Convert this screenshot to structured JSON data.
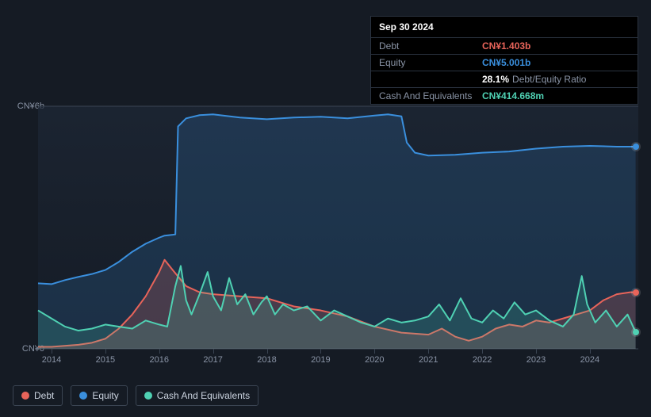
{
  "tooltip": {
    "date": "Sep 30 2024",
    "rows": [
      {
        "label": "Debt",
        "value": "CN¥1.403b",
        "color": "#e8645a"
      },
      {
        "label": "Equity",
        "value": "CN¥5.001b",
        "color": "#3a8fdd"
      },
      {
        "label": "",
        "value": "28.1%",
        "extra": "Debt/Equity Ratio",
        "color": "#ffffff"
      },
      {
        "label": "Cash And Equivalents",
        "value": "CN¥414.668m",
        "color": "#4fd1b3"
      }
    ]
  },
  "chart": {
    "type": "area-line",
    "background_color": "#151b24",
    "plot_bg_top": "rgba(30,40,55,0.7)",
    "ylim": [
      0,
      6
    ],
    "y_ticks": [
      {
        "v": 6,
        "label": "CN¥6b"
      },
      {
        "v": 0,
        "label": "CN¥0"
      }
    ],
    "x_start": 2013.75,
    "x_end": 2024.9,
    "x_ticks": [
      2014,
      2015,
      2016,
      2017,
      2018,
      2019,
      2020,
      2021,
      2022,
      2023,
      2024
    ],
    "grid_color": "#3a4452",
    "series": [
      {
        "name": "Equity",
        "color": "#3a8fdd",
        "fill_opacity": 0.18,
        "line_width": 2,
        "points": [
          [
            2013.75,
            1.62
          ],
          [
            2014.0,
            1.6
          ],
          [
            2014.25,
            1.7
          ],
          [
            2014.5,
            1.78
          ],
          [
            2014.75,
            1.85
          ],
          [
            2015.0,
            1.95
          ],
          [
            2015.25,
            2.15
          ],
          [
            2015.5,
            2.4
          ],
          [
            2015.75,
            2.6
          ],
          [
            2016.0,
            2.75
          ],
          [
            2016.1,
            2.8
          ],
          [
            2016.25,
            2.82
          ],
          [
            2016.3,
            2.83
          ],
          [
            2016.35,
            5.5
          ],
          [
            2016.5,
            5.7
          ],
          [
            2016.75,
            5.78
          ],
          [
            2017.0,
            5.8
          ],
          [
            2017.5,
            5.72
          ],
          [
            2018.0,
            5.68
          ],
          [
            2018.5,
            5.72
          ],
          [
            2019.0,
            5.74
          ],
          [
            2019.5,
            5.7
          ],
          [
            2020.0,
            5.77
          ],
          [
            2020.25,
            5.8
          ],
          [
            2020.5,
            5.75
          ],
          [
            2020.6,
            5.1
          ],
          [
            2020.75,
            4.85
          ],
          [
            2021.0,
            4.78
          ],
          [
            2021.5,
            4.8
          ],
          [
            2022.0,
            4.85
          ],
          [
            2022.5,
            4.88
          ],
          [
            2023.0,
            4.95
          ],
          [
            2023.5,
            5.0
          ],
          [
            2024.0,
            5.02
          ],
          [
            2024.5,
            5.0
          ],
          [
            2024.85,
            5.0
          ]
        ]
      },
      {
        "name": "Debt",
        "color": "#e8645a",
        "fill_opacity": 0.22,
        "line_width": 2,
        "points": [
          [
            2013.75,
            0.05
          ],
          [
            2014.0,
            0.05
          ],
          [
            2014.5,
            0.1
          ],
          [
            2014.75,
            0.15
          ],
          [
            2015.0,
            0.25
          ],
          [
            2015.25,
            0.5
          ],
          [
            2015.5,
            0.85
          ],
          [
            2015.75,
            1.3
          ],
          [
            2016.0,
            1.9
          ],
          [
            2016.1,
            2.2
          ],
          [
            2016.25,
            1.95
          ],
          [
            2016.5,
            1.55
          ],
          [
            2016.75,
            1.4
          ],
          [
            2017.0,
            1.35
          ],
          [
            2017.5,
            1.3
          ],
          [
            2018.0,
            1.25
          ],
          [
            2018.5,
            1.05
          ],
          [
            2019.0,
            0.95
          ],
          [
            2019.5,
            0.8
          ],
          [
            2020.0,
            0.55
          ],
          [
            2020.5,
            0.4
          ],
          [
            2021.0,
            0.35
          ],
          [
            2021.25,
            0.5
          ],
          [
            2021.5,
            0.3
          ],
          [
            2021.75,
            0.2
          ],
          [
            2022.0,
            0.3
          ],
          [
            2022.25,
            0.5
          ],
          [
            2022.5,
            0.6
          ],
          [
            2022.75,
            0.55
          ],
          [
            2023.0,
            0.7
          ],
          [
            2023.25,
            0.65
          ],
          [
            2023.5,
            0.75
          ],
          [
            2023.75,
            0.85
          ],
          [
            2024.0,
            0.95
          ],
          [
            2024.25,
            1.2
          ],
          [
            2024.5,
            1.35
          ],
          [
            2024.75,
            1.4
          ],
          [
            2024.85,
            1.4
          ]
        ]
      },
      {
        "name": "Cash And Equivalents",
        "color": "#4fd1b3",
        "fill_opacity": 0.18,
        "line_width": 2,
        "points": [
          [
            2013.75,
            0.95
          ],
          [
            2014.0,
            0.75
          ],
          [
            2014.25,
            0.55
          ],
          [
            2014.5,
            0.45
          ],
          [
            2014.75,
            0.5
          ],
          [
            2015.0,
            0.6
          ],
          [
            2015.25,
            0.55
          ],
          [
            2015.5,
            0.5
          ],
          [
            2015.75,
            0.7
          ],
          [
            2016.0,
            0.6
          ],
          [
            2016.15,
            0.55
          ],
          [
            2016.3,
            1.55
          ],
          [
            2016.4,
            2.05
          ],
          [
            2016.5,
            1.2
          ],
          [
            2016.6,
            0.85
          ],
          [
            2016.75,
            1.35
          ],
          [
            2016.9,
            1.9
          ],
          [
            2017.0,
            1.3
          ],
          [
            2017.15,
            0.95
          ],
          [
            2017.3,
            1.75
          ],
          [
            2017.45,
            1.1
          ],
          [
            2017.6,
            1.35
          ],
          [
            2017.75,
            0.85
          ],
          [
            2017.9,
            1.15
          ],
          [
            2018.0,
            1.3
          ],
          [
            2018.15,
            0.85
          ],
          [
            2018.3,
            1.1
          ],
          [
            2018.5,
            0.95
          ],
          [
            2018.75,
            1.05
          ],
          [
            2019.0,
            0.7
          ],
          [
            2019.25,
            0.95
          ],
          [
            2019.5,
            0.8
          ],
          [
            2019.75,
            0.65
          ],
          [
            2020.0,
            0.55
          ],
          [
            2020.25,
            0.75
          ],
          [
            2020.5,
            0.65
          ],
          [
            2020.75,
            0.7
          ],
          [
            2021.0,
            0.8
          ],
          [
            2021.2,
            1.1
          ],
          [
            2021.4,
            0.7
          ],
          [
            2021.6,
            1.25
          ],
          [
            2021.8,
            0.75
          ],
          [
            2022.0,
            0.65
          ],
          [
            2022.2,
            0.95
          ],
          [
            2022.4,
            0.75
          ],
          [
            2022.6,
            1.15
          ],
          [
            2022.8,
            0.85
          ],
          [
            2023.0,
            0.95
          ],
          [
            2023.25,
            0.7
          ],
          [
            2023.5,
            0.55
          ],
          [
            2023.7,
            0.85
          ],
          [
            2023.85,
            1.8
          ],
          [
            2023.95,
            1.1
          ],
          [
            2024.1,
            0.65
          ],
          [
            2024.3,
            0.95
          ],
          [
            2024.5,
            0.55
          ],
          [
            2024.7,
            0.85
          ],
          [
            2024.85,
            0.41
          ]
        ]
      }
    ],
    "end_markers": [
      {
        "series": "Equity",
        "x": 2024.85,
        "y": 5.0,
        "color": "#3a8fdd"
      },
      {
        "series": "Debt",
        "x": 2024.85,
        "y": 1.4,
        "color": "#e8645a"
      },
      {
        "series": "Cash And Equivalents",
        "x": 2024.85,
        "y": 0.41,
        "color": "#4fd1b3"
      }
    ]
  },
  "legend": [
    {
      "label": "Debt",
      "color": "#e8645a"
    },
    {
      "label": "Equity",
      "color": "#3a8fdd"
    },
    {
      "label": "Cash And Equivalents",
      "color": "#4fd1b3"
    }
  ]
}
